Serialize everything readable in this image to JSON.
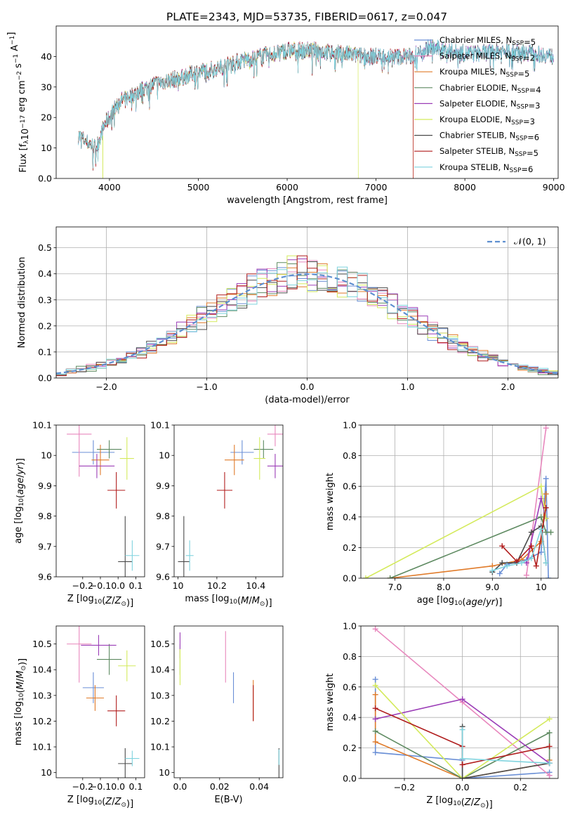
{
  "title": "PLATE=2343, MJD=53735, FIBERID=0617, z=0.047",
  "models": [
    {
      "name": "Chabrier MILES",
      "nssp": "5",
      "color": "#6a8fd6"
    },
    {
      "name": "Salpeter MILES",
      "nssp": "2",
      "color": "#e887bd"
    },
    {
      "name": "Kroupa MILES",
      "nssp": "5",
      "color": "#e07b2a"
    },
    {
      "name": "Chabrier ELODIE",
      "nssp": "4",
      "color": "#5e8a61"
    },
    {
      "name": "Salpeter ELODIE",
      "nssp": "3",
      "color": "#9b3db7"
    },
    {
      "name": "Kroupa ELODIE",
      "nssp": "3",
      "color": "#d4ea5c"
    },
    {
      "name": "Chabrier STELIB",
      "nssp": "6",
      "color": "#4a4a4a"
    },
    {
      "name": "Salpeter STELIB",
      "nssp": "5",
      "color": "#b01c1c"
    },
    {
      "name": "Kroupa STELIB",
      "nssp": "6",
      "color": "#7fd3de"
    }
  ],
  "chart_data": [
    {
      "id": "spectrum",
      "type": "line",
      "xlabel": "wavelength [Angstrom, rest frame]",
      "ylabel": "Flux [f_λ 10^-17 erg cm^-2 s^-1 A^-1]",
      "xlim": [
        3400,
        9050
      ],
      "ylim": [
        0,
        50
      ],
      "xticks": [
        4000,
        5000,
        6000,
        7000,
        8000,
        9000
      ],
      "yticks": [
        0,
        10,
        20,
        30,
        40
      ],
      "grid": false,
      "legend": "right",
      "continuum": [
        [
          3650,
          14
        ],
        [
          3750,
          12
        ],
        [
          3850,
          10
        ],
        [
          3950,
          18
        ],
        [
          4000,
          20
        ],
        [
          4100,
          25
        ],
        [
          4300,
          28
        ],
        [
          4500,
          31
        ],
        [
          4800,
          33
        ],
        [
          5000,
          35
        ],
        [
          5200,
          36
        ],
        [
          5400,
          38
        ],
        [
          5700,
          40
        ],
        [
          6000,
          42
        ],
        [
          6300,
          42
        ],
        [
          6600,
          41
        ],
        [
          6900,
          40
        ],
        [
          7200,
          40
        ],
        [
          7400,
          40
        ],
        [
          7600,
          43
        ],
        [
          7800,
          42
        ],
        [
          8000,
          41
        ],
        [
          8200,
          41
        ],
        [
          8500,
          42
        ],
        [
          8800,
          41
        ],
        [
          9000,
          40
        ]
      ],
      "xrange_models": [
        [
          3650,
          9000
        ],
        [
          3650,
          9000
        ],
        [
          3650,
          7420
        ],
        [
          3650,
          9000
        ],
        [
          3650,
          9000
        ],
        [
          3650,
          6800
        ],
        [
          3650,
          9000
        ],
        [
          3650,
          7420
        ],
        [
          3650,
          9000
        ]
      ]
    },
    {
      "id": "residuals",
      "type": "histogram",
      "xlabel": "(data-model)/error",
      "ylabel": "Normed distribution",
      "xlim": [
        -2.5,
        2.5
      ],
      "ylim": [
        0,
        0.58
      ],
      "xticks": [
        -2,
        -1,
        0,
        1,
        2
      ],
      "yticks": [
        0.0,
        0.1,
        0.2,
        0.3,
        0.4,
        0.5
      ],
      "grid": true,
      "legend": "top-right",
      "reference_label": "𝒩(0, 1)"
    },
    {
      "id": "age_vs_Z",
      "type": "scatter",
      "xlabel": "Z [log10(Z/Z☉)]",
      "ylabel": "age [log10(age/yr)]",
      "xlim": [
        -0.35,
        0.15
      ],
      "ylim": [
        9.6,
        10.1
      ],
      "xticks": [
        -0.2,
        -0.1,
        0.0,
        0.1
      ],
      "yticks": [
        9.6,
        9.7,
        9.8,
        9.9,
        10.0,
        10.1
      ],
      "points": [
        {
          "x": -0.14,
          "y": 10.01,
          "ex": 0.12,
          "ey": 0.04
        },
        {
          "x": -0.22,
          "y": 10.07,
          "ex": 0.07,
          "ey": 0.14
        },
        {
          "x": -0.1,
          "y": 9.985,
          "ex": 0.05,
          "ey": 0.05
        },
        {
          "x": -0.05,
          "y": 10.02,
          "ex": 0.07,
          "ey": 0.03
        },
        {
          "x": -0.12,
          "y": 9.965,
          "ex": 0.1,
          "ey": 0.04
        },
        {
          "x": 0.05,
          "y": 9.99,
          "ex": 0.04,
          "ey": 0.07
        },
        {
          "x": 0.04,
          "y": 9.65,
          "ex": 0.04,
          "ey": 0.15
        },
        {
          "x": -0.01,
          "y": 9.885,
          "ex": 0.05,
          "ey": 0.06
        },
        {
          "x": 0.08,
          "y": 9.67,
          "ex": 0.04,
          "ey": 0.05
        }
      ]
    },
    {
      "id": "age_vs_mass",
      "type": "scatter",
      "xlabel": "mass [log10(M/M☉)]",
      "ylabel": "",
      "xlim": [
        9.98,
        10.54
      ],
      "ylim": [
        9.6,
        10.1
      ],
      "xticks": [
        10.0,
        10.2,
        10.4
      ],
      "yticks": [
        9.6,
        9.7,
        9.8,
        9.9,
        10.0,
        10.1
      ],
      "points": [
        {
          "x": 10.33,
          "y": 10.01,
          "ex": 0.06,
          "ey": 0.04
        },
        {
          "x": 10.5,
          "y": 10.07,
          "ex": 0.04,
          "ey": 0.04
        },
        {
          "x": 10.29,
          "y": 9.985,
          "ex": 0.05,
          "ey": 0.05
        },
        {
          "x": 10.44,
          "y": 10.02,
          "ex": 0.05,
          "ey": 0.03
        },
        {
          "x": 10.5,
          "y": 9.965,
          "ex": 0.04,
          "ey": 0.04
        },
        {
          "x": 10.42,
          "y": 9.99,
          "ex": 0.03,
          "ey": 0.07
        },
        {
          "x": 10.03,
          "y": 9.65,
          "ex": 0.03,
          "ey": 0.15
        },
        {
          "x": 10.24,
          "y": 9.885,
          "ex": 0.04,
          "ey": 0.06
        },
        {
          "x": 10.06,
          "y": 9.67,
          "ex": 0.02,
          "ey": 0.05
        }
      ]
    },
    {
      "id": "weight_vs_age",
      "type": "line",
      "xlabel": "age [log10(age/yr)]",
      "ylabel": "mass weight",
      "xlim": [
        6.3,
        10.35
      ],
      "ylim": [
        0,
        1
      ],
      "xticks": [
        7,
        8,
        9,
        10
      ],
      "yticks": [
        0.0,
        0.2,
        0.4,
        0.6,
        0.8,
        1.0
      ],
      "grid": true,
      "series": [
        {
          "x": [
            10.15,
            10.1,
            10.0,
            9.7,
            9.3,
            9.15
          ],
          "y": [
            0.0,
            0.65,
            0.17,
            0.12,
            0.09,
            0.03
          ]
        },
        {
          "x": [
            10.1,
            9.7
          ],
          "y": [
            0.98,
            0.02
          ]
        },
        {
          "x": [
            6.9,
            9.0,
            9.6,
            10.0,
            10.1
          ],
          "y": [
            0.0,
            0.08,
            0.12,
            0.24,
            0.55
          ]
        },
        {
          "x": [
            6.9,
            10.0,
            10.1,
            10.2
          ],
          "y": [
            0.0,
            0.4,
            0.3,
            0.3
          ]
        },
        {
          "x": [
            9.7,
            10.0,
            10.1
          ],
          "y": [
            0.1,
            0.52,
            0.39
          ]
        },
        {
          "x": [
            6.4,
            10.0,
            10.1
          ],
          "y": [
            0.0,
            0.6,
            0.39
          ]
        },
        {
          "x": [
            9.0,
            9.2,
            9.5,
            9.8,
            10.0,
            10.1
          ],
          "y": [
            0.04,
            0.1,
            0.1,
            0.3,
            0.34,
            0.1
          ]
        },
        {
          "x": [
            9.2,
            9.5,
            9.8,
            9.9,
            10.1
          ],
          "y": [
            0.21,
            0.11,
            0.21,
            0.08,
            0.46
          ]
        },
        {
          "x": [
            9.0,
            9.3,
            9.6,
            9.8,
            10.0,
            10.1
          ],
          "y": [
            0.05,
            0.08,
            0.1,
            0.13,
            0.32,
            0.1
          ]
        }
      ]
    },
    {
      "id": "mass_vs_Z",
      "type": "scatter",
      "xlabel": "Z [log10(Z/Z☉)]",
      "ylabel": "mass [log10(M/M☉)]",
      "xlim": [
        -0.35,
        0.15
      ],
      "ylim": [
        9.98,
        10.57
      ],
      "xticks": [
        -0.2,
        -0.1,
        0.0,
        0.1
      ],
      "yticks": [
        10.0,
        10.1,
        10.2,
        10.3,
        10.4,
        10.5
      ],
      "points": [
        {
          "x": -0.14,
          "y": 10.33,
          "ex": 0.06,
          "ey": 0.06
        },
        {
          "x": -0.22,
          "y": 10.5,
          "ex": 0.07,
          "ey": 0.15
        },
        {
          "x": -0.13,
          "y": 10.29,
          "ex": 0.05,
          "ey": 0.05
        },
        {
          "x": -0.05,
          "y": 10.44,
          "ex": 0.07,
          "ey": 0.06
        },
        {
          "x": -0.11,
          "y": 10.495,
          "ex": 0.1,
          "ey": 0.04
        },
        {
          "x": 0.05,
          "y": 10.415,
          "ex": 0.05,
          "ey": 0.06
        },
        {
          "x": 0.04,
          "y": 10.035,
          "ex": 0.04,
          "ey": 0.06
        },
        {
          "x": -0.01,
          "y": 10.24,
          "ex": 0.05,
          "ey": 0.06
        },
        {
          "x": 0.08,
          "y": 10.055,
          "ex": 0.04,
          "ey": 0.03
        }
      ]
    },
    {
      "id": "mass_vs_EBV",
      "type": "scatter",
      "xlabel": "E(B-V)",
      "ylabel": "",
      "xlim": [
        -0.003,
        0.052
      ],
      "ylim": [
        9.98,
        10.57
      ],
      "xticks": [
        0.0,
        0.02,
        0.04
      ],
      "yticks": [
        10.0,
        10.1,
        10.2,
        10.3,
        10.4,
        10.5
      ],
      "points": [
        {
          "x": 0.027,
          "y": 10.33,
          "ex": 0,
          "ey": 0.06
        },
        {
          "x": 0.023,
          "y": 10.45,
          "ex": 0,
          "ey": 0.1
        },
        {
          "x": 0.037,
          "y": 10.28,
          "ex": 0,
          "ey": 0.08
        },
        {
          "x": 0.0,
          "y": 10.44,
          "ex": 0,
          "ey": 0.06
        },
        {
          "x": 0.0,
          "y": 10.495,
          "ex": 0,
          "ey": 0.05
        },
        {
          "x": 0.0,
          "y": 10.41,
          "ex": 0,
          "ey": 0.07
        },
        {
          "x": 0.05,
          "y": 10.035,
          "ex": 0,
          "ey": 0.06
        },
        {
          "x": 0.037,
          "y": 10.27,
          "ex": 0,
          "ey": 0.07
        },
        {
          "x": 0.05,
          "y": 10.06,
          "ex": 0,
          "ey": 0.03
        }
      ]
    },
    {
      "id": "weight_vs_Z",
      "type": "line",
      "xlabel": "Z [log10(Z/Z☉)]",
      "ylabel": "mass weight",
      "xlim": [
        -0.35,
        0.33
      ],
      "ylim": [
        0,
        1
      ],
      "xticks": [
        -0.2,
        0.0,
        0.2
      ],
      "yticks": [
        0.0,
        0.2,
        0.4,
        0.6,
        0.8,
        1.0
      ],
      "grid": true,
      "series": [
        {
          "x": [
            -0.3,
            -0.3,
            0.0,
            0.0,
            0.3,
            0.3
          ],
          "y": [
            0.65,
            0.17,
            0.12,
            0.0,
            0.04,
            0.02
          ]
        },
        {
          "x": [
            -0.3,
            0.0,
            0.3
          ],
          "y": [
            0.98,
            0.5,
            0.02
          ]
        },
        {
          "x": [
            -0.3,
            -0.3,
            0.0,
            0.3,
            0.3
          ],
          "y": [
            0.55,
            0.24,
            0.0,
            0.1,
            0.12
          ]
        },
        {
          "x": [
            -0.3,
            0.0,
            0.3,
            0.3
          ],
          "y": [
            0.31,
            0.0,
            0.3,
            0.1
          ]
        },
        {
          "x": [
            -0.3,
            0.0,
            0.3
          ],
          "y": [
            0.39,
            0.52,
            0.1
          ]
        },
        {
          "x": [
            -0.3,
            0.0,
            0.3
          ],
          "y": [
            0.61,
            0.0,
            0.39
          ]
        },
        {
          "x": [
            0.0,
            0.0,
            0.3
          ],
          "y": [
            0.34,
            0.0,
            0.1
          ]
        },
        {
          "x": [
            -0.3,
            0.0,
            0.0,
            0.3
          ],
          "y": [
            0.46,
            0.21,
            0.09,
            0.21
          ]
        },
        {
          "x": [
            0.0,
            0.0,
            0.3
          ],
          "y": [
            0.32,
            0.13,
            0.1
          ]
        }
      ]
    }
  ]
}
